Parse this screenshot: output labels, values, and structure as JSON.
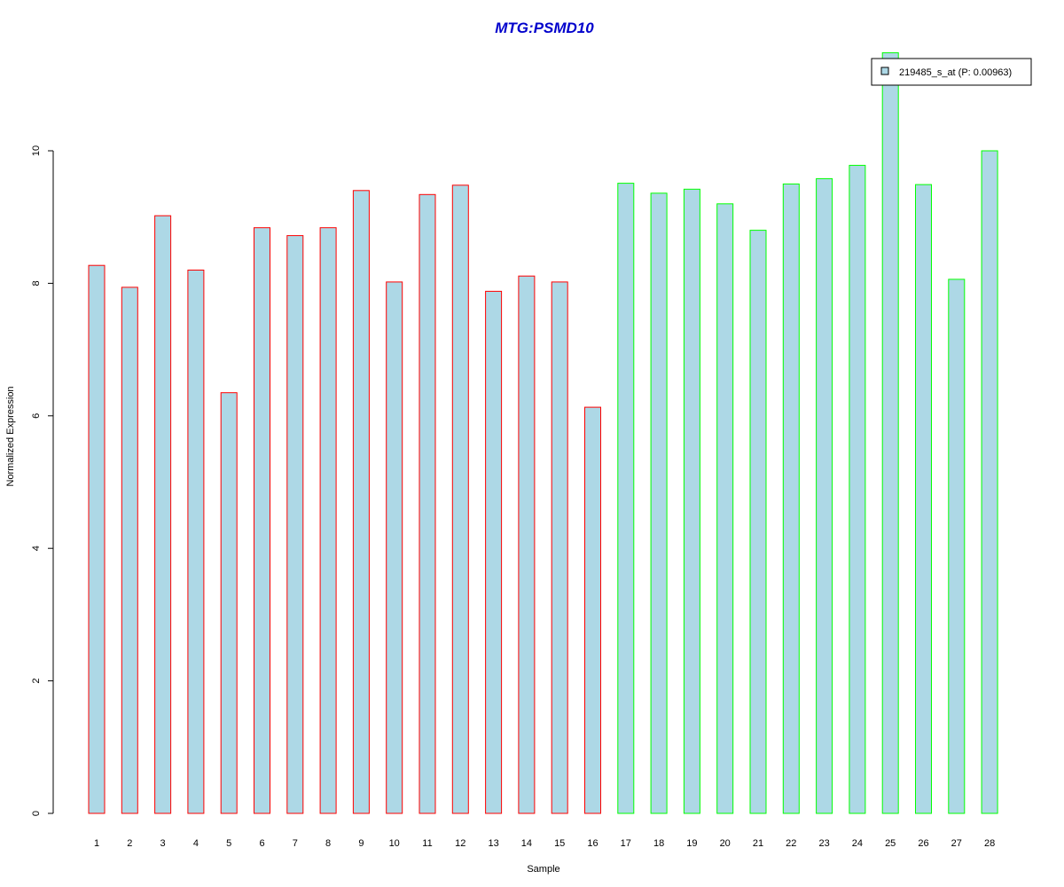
{
  "chart_data": {
    "type": "bar",
    "title": "MTG:PSMD10",
    "xlabel": "Sample",
    "ylabel": "Normalized Expression",
    "categories": [
      "1",
      "2",
      "3",
      "4",
      "5",
      "6",
      "7",
      "8",
      "9",
      "10",
      "11",
      "12",
      "13",
      "14",
      "15",
      "16",
      "17",
      "18",
      "19",
      "20",
      "21",
      "22",
      "23",
      "24",
      "25",
      "26",
      "27",
      "28"
    ],
    "series": [
      {
        "name": "219485_s_at (P: 0.00963)",
        "values": [
          8.27,
          7.94,
          9.02,
          8.2,
          6.35,
          8.84,
          8.72,
          8.84,
          9.4,
          8.02,
          9.34,
          9.48,
          7.88,
          8.11,
          8.02,
          6.13,
          9.51,
          9.36,
          9.42,
          9.2,
          8.8,
          9.5,
          9.58,
          9.78,
          11.48,
          9.49,
          8.06,
          10.0
        ]
      }
    ],
    "group_border_colors": [
      "#ff0000",
      "#ff0000",
      "#ff0000",
      "#ff0000",
      "#ff0000",
      "#ff0000",
      "#ff0000",
      "#ff0000",
      "#ff0000",
      "#ff0000",
      "#ff0000",
      "#ff0000",
      "#ff0000",
      "#ff0000",
      "#ff0000",
      "#ff0000",
      "#00ff00",
      "#00ff00",
      "#00ff00",
      "#00ff00",
      "#00ff00",
      "#00ff00",
      "#00ff00",
      "#00ff00",
      "#00ff00",
      "#00ff00",
      "#00ff00",
      "#00ff00"
    ],
    "bar_fill": "#add8e6",
    "title_color": "#0000cc",
    "y_ticks": [
      0,
      2,
      4,
      6,
      8,
      10
    ],
    "ylim": [
      0,
      11.5
    ],
    "grid": false,
    "legend_position": "top-right"
  }
}
